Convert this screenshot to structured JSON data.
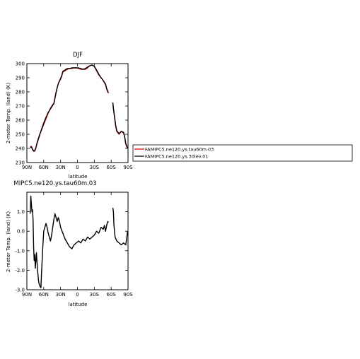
{
  "chart_data": [
    {
      "type": "line",
      "title": "DJF",
      "xlabel": "latitude",
      "ylabel": "2-meter Temp. (land) (K)",
      "xlim": [
        90,
        -90
      ],
      "ylim": [
        230,
        300
      ],
      "x_ticks": [
        "90N",
        "60N",
        "30N",
        "0",
        "30S",
        "60S",
        "90S"
      ],
      "y_ticks": [
        "230",
        "240",
        "250",
        "260",
        "270",
        "280",
        "290",
        "300"
      ],
      "grid": false,
      "legend": "right",
      "series": [
        {
          "name": "FAMIPC5.ne120.ys.tau60m.03",
          "color": "#cc0000",
          "segments": [
            [
              [
                84,
                241
              ],
              [
                82,
                241.5
              ],
              [
                80,
                239
              ],
              [
                78,
                238.5
              ],
              [
                76,
                238
              ],
              [
                74,
                240
              ],
              [
                72,
                244
              ],
              [
                68,
                249
              ],
              [
                64,
                253
              ],
              [
                60,
                257
              ],
              [
                56,
                261
              ],
              [
                52,
                265
              ],
              [
                48,
                268.5
              ],
              [
                44,
                271
              ],
              [
                42,
                272
              ],
              [
                40,
                276
              ],
              [
                38,
                280
              ],
              [
                36,
                283
              ],
              [
                34,
                286
              ],
              [
                30,
                289
              ],
              [
                28,
                291
              ],
              [
                26,
                294
              ],
              [
                22,
                295
              ],
              [
                18,
                296
              ],
              [
                14,
                296.5
              ],
              [
                10,
                296.5
              ],
              [
                6,
                297
              ],
              [
                2,
                297
              ],
              [
                -2,
                296.5
              ],
              [
                -6,
                296
              ],
              [
                -10,
                296
              ],
              [
                -14,
                296
              ],
              [
                -18,
                297
              ],
              [
                -22,
                298.5
              ],
              [
                -26,
                299
              ],
              [
                -30,
                298
              ],
              [
                -34,
                295
              ],
              [
                -38,
                292
              ],
              [
                -42,
                290
              ],
              [
                -46,
                288
              ],
              [
                -50,
                285
              ],
              [
                -52,
                282
              ],
              [
                -54,
                280
              ],
              [
                -55,
                279
              ]
            ],
            [
              [
                -63,
                272
              ],
              [
                -64,
                268
              ],
              [
                -66,
                262
              ],
              [
                -68,
                256
              ],
              [
                -70,
                252
              ],
              [
                -74,
                250
              ],
              [
                -78,
                252
              ],
              [
                -82,
                251
              ],
              [
                -84,
                248
              ],
              [
                -86,
                243
              ],
              [
                -88,
                241
              ],
              [
                -89,
                240
              ]
            ]
          ]
        },
        {
          "name": "FAMIPC5.ne120.ys.30lev.01",
          "color": "#000000",
          "segments": [
            [
              [
                84,
                240.5
              ],
              [
                82,
                241
              ],
              [
                80,
                239.5
              ],
              [
                78,
                238
              ],
              [
                76,
                238.5
              ],
              [
                74,
                240.5
              ],
              [
                72,
                243.5
              ],
              [
                68,
                248.5
              ],
              [
                64,
                253.5
              ],
              [
                60,
                258
              ],
              [
                56,
                262
              ],
              [
                52,
                265.5
              ],
              [
                48,
                268
              ],
              [
                44,
                270.5
              ],
              [
                42,
                271.5
              ],
              [
                40,
                275.5
              ],
              [
                38,
                279.5
              ],
              [
                36,
                283
              ],
              [
                34,
                286
              ],
              [
                30,
                289.5
              ],
              [
                28,
                291.5
              ],
              [
                26,
                294.5
              ],
              [
                22,
                295.5
              ],
              [
                18,
                296.5
              ],
              [
                14,
                296.5
              ],
              [
                10,
                297
              ],
              [
                6,
                297
              ],
              [
                2,
                297
              ],
              [
                -2,
                297
              ],
              [
                -6,
                296.5
              ],
              [
                -10,
                296
              ],
              [
                -14,
                296.5
              ],
              [
                -18,
                297.5
              ],
              [
                -22,
                298.5
              ],
              [
                -26,
                299
              ],
              [
                -30,
                298
              ],
              [
                -34,
                295.5
              ],
              [
                -38,
                292.5
              ],
              [
                -42,
                290
              ],
              [
                -46,
                288
              ],
              [
                -50,
                285.5
              ],
              [
                -52,
                282.5
              ],
              [
                -54,
                280.5
              ],
              [
                -55,
                279.5
              ]
            ],
            [
              [
                -63,
                272.5
              ],
              [
                -64,
                268.5
              ],
              [
                -66,
                262.5
              ],
              [
                -68,
                256.5
              ],
              [
                -70,
                252.5
              ],
              [
                -74,
                250.5
              ],
              [
                -78,
                252
              ],
              [
                -82,
                251.5
              ],
              [
                -84,
                248.5
              ],
              [
                -86,
                243.5
              ],
              [
                -88,
                241.5
              ],
              [
                -89,
                240
              ]
            ]
          ]
        }
      ]
    },
    {
      "type": "line",
      "title": "MIPC5.ne120.ys.tau60m.03",
      "xlabel": "latitude",
      "ylabel": "2-meter Temp. (land) (K)",
      "xlim": [
        90,
        -90
      ],
      "ylim": [
        -3.0,
        2.0
      ],
      "x_ticks": [
        "90N",
        "60N",
        "30N",
        "0",
        "30S",
        "60S",
        "90S"
      ],
      "y_ticks": [
        "-3.0",
        "-2.0",
        "-1.0",
        "0.0",
        "1.0"
      ],
      "grid": false,
      "series": [
        {
          "color": "#000000",
          "segments": [
            [
              [
                84,
                0.9
              ],
              [
                83,
                1.8
              ],
              [
                82,
                1.4
              ],
              [
                81,
                1.0
              ],
              [
                80,
                1.1
              ],
              [
                79,
                0.6
              ],
              [
                78,
                -0.8
              ],
              [
                77,
                -1.5
              ],
              [
                76,
                -1.2
              ],
              [
                75,
                -1.9
              ],
              [
                74,
                -1.5
              ],
              [
                73,
                -1.1
              ],
              [
                71,
                -2.0
              ],
              [
                69,
                -2.6
              ],
              [
                67,
                -2.8
              ],
              [
                65,
                -2.9
              ],
              [
                64,
                -2.2
              ],
              [
                62,
                -1.0
              ],
              [
                60,
                0.0
              ],
              [
                58,
                0.2
              ],
              [
                56,
                0.4
              ],
              [
                54,
                0.2
              ],
              [
                52,
                -0.1
              ],
              [
                50,
                -0.3
              ],
              [
                48,
                -0.5
              ],
              [
                46,
                -0.2
              ],
              [
                44,
                0.2
              ],
              [
                42,
                0.6
              ],
              [
                40,
                0.9
              ],
              [
                38,
                0.7
              ],
              [
                36,
                0.5
              ],
              [
                34,
                0.7
              ],
              [
                32,
                0.5
              ],
              [
                30,
                0.2
              ],
              [
                26,
                -0.1
              ],
              [
                22,
                -0.4
              ],
              [
                18,
                -0.6
              ],
              [
                14,
                -0.8
              ],
              [
                10,
                -0.9
              ],
              [
                6,
                -0.7
              ],
              [
                2,
                -0.6
              ],
              [
                -2,
                -0.5
              ],
              [
                -6,
                -0.6
              ],
              [
                -10,
                -0.4
              ],
              [
                -14,
                -0.5
              ],
              [
                -18,
                -0.3
              ],
              [
                -22,
                -0.4
              ],
              [
                -26,
                -0.3
              ],
              [
                -30,
                -0.2
              ],
              [
                -34,
                0.0
              ],
              [
                -38,
                -0.1
              ],
              [
                -42,
                0.2
              ],
              [
                -46,
                0.1
              ],
              [
                -48,
                0.3
              ],
              [
                -50,
                0.0
              ],
              [
                -52,
                0.3
              ],
              [
                -54,
                0.5
              ],
              [
                -55,
                0.45
              ]
            ],
            [
              [
                -63,
                1.2
              ],
              [
                -64,
                1.0
              ],
              [
                -65,
                0.3
              ],
              [
                -67,
                -0.3
              ],
              [
                -70,
                -0.5
              ],
              [
                -74,
                -0.6
              ],
              [
                -78,
                -0.7
              ],
              [
                -82,
                -0.6
              ],
              [
                -86,
                -0.7
              ],
              [
                -88,
                -0.3
              ],
              [
                -89,
                0.0
              ]
            ]
          ]
        }
      ]
    }
  ]
}
